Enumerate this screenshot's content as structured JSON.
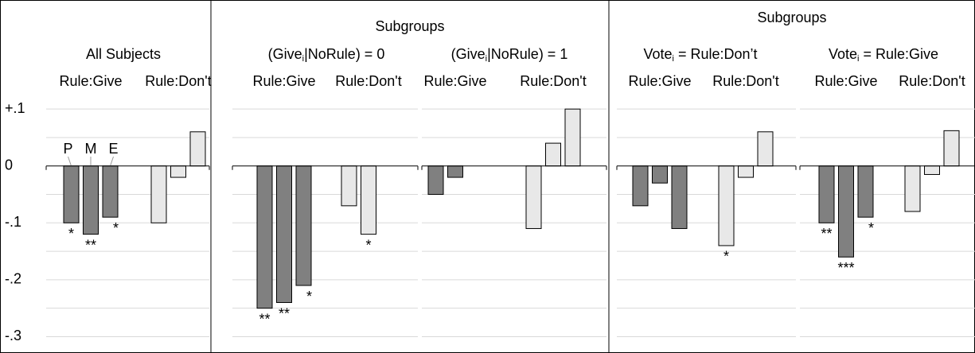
{
  "chart_data": {
    "type": "bar",
    "ylim": [
      -0.328,
      0.11
    ],
    "yticks": [
      {
        "value": 0.1,
        "label": "+.1"
      },
      0,
      {
        "value": -0.1,
        "label": "-.1"
      },
      {
        "value": -0.2,
        "label": "-.2"
      },
      {
        "value": -0.3,
        "label": "-.3"
      }
    ],
    "grid_yticks": [
      0.05,
      -0.05,
      -0.15,
      -0.25
    ],
    "grid": true,
    "bar_labels": [
      "P",
      "M",
      "E"
    ],
    "subgroup_headers": [
      "Subgroups",
      "Subgroups"
    ],
    "panels": [
      {
        "title": "All Subjects",
        "series": [
          {
            "name": "Rule:Give",
            "color": "#808080",
            "values": [
              -0.1,
              -0.12,
              -0.09
            ],
            "stars": [
              "*",
              "**",
              "*"
            ]
          },
          {
            "name": "Rule:Don't",
            "color": "#e8e8e8",
            "values": [
              -0.1,
              -0.02,
              0.06
            ],
            "stars": [
              null,
              null,
              null
            ]
          }
        ]
      },
      {
        "title": "(Give",
        "title_sub": "i",
        "title_rest": "|NoRule) = 0",
        "series": [
          {
            "name": "Rule:Give",
            "color": "#808080",
            "values": [
              -0.25,
              -0.24,
              -0.21
            ],
            "stars": [
              "**",
              "**",
              "*"
            ]
          },
          {
            "name": "Rule:Don't",
            "color": "#e8e8e8",
            "values": [
              -0.07,
              -0.12,
              null
            ],
            "stars": [
              null,
              "*",
              null
            ]
          }
        ]
      },
      {
        "title": "(Give",
        "title_sub": "i",
        "title_rest": "|NoRule) = 1",
        "series": [
          {
            "name": "Rule:Give",
            "color": "#808080",
            "values": [
              -0.05,
              -0.02,
              null
            ],
            "stars": [
              null,
              null,
              null
            ]
          },
          {
            "name": "Rule:Don't",
            "color": "#e8e8e8",
            "values": [
              -0.11,
              0.04,
              0.1
            ],
            "stars": [
              null,
              null,
              null
            ]
          }
        ]
      },
      {
        "title": "Vote",
        "title_sub": "i",
        "title_rest": " = Rule:Don’t",
        "series": [
          {
            "name": "Rule:Give",
            "color": "#808080",
            "values": [
              -0.07,
              -0.03,
              -0.11
            ],
            "stars": [
              null,
              null,
              null
            ]
          },
          {
            "name": "Rule:Don't",
            "color": "#e8e8e8",
            "values": [
              -0.14,
              -0.02,
              0.06
            ],
            "stars": [
              "*",
              null,
              null
            ]
          }
        ]
      },
      {
        "title": "Vote",
        "title_sub": "i",
        "title_rest": " = Rule:Give",
        "series": [
          {
            "name": "Rule:Give",
            "color": "#808080",
            "values": [
              -0.1,
              -0.16,
              -0.09
            ],
            "stars": [
              "**",
              "***",
              "*"
            ]
          },
          {
            "name": "Rule:Don't",
            "color": "#e8e8e8",
            "values": [
              -0.08,
              -0.015,
              0.062
            ],
            "stars": [
              null,
              null,
              null
            ]
          }
        ]
      }
    ]
  }
}
